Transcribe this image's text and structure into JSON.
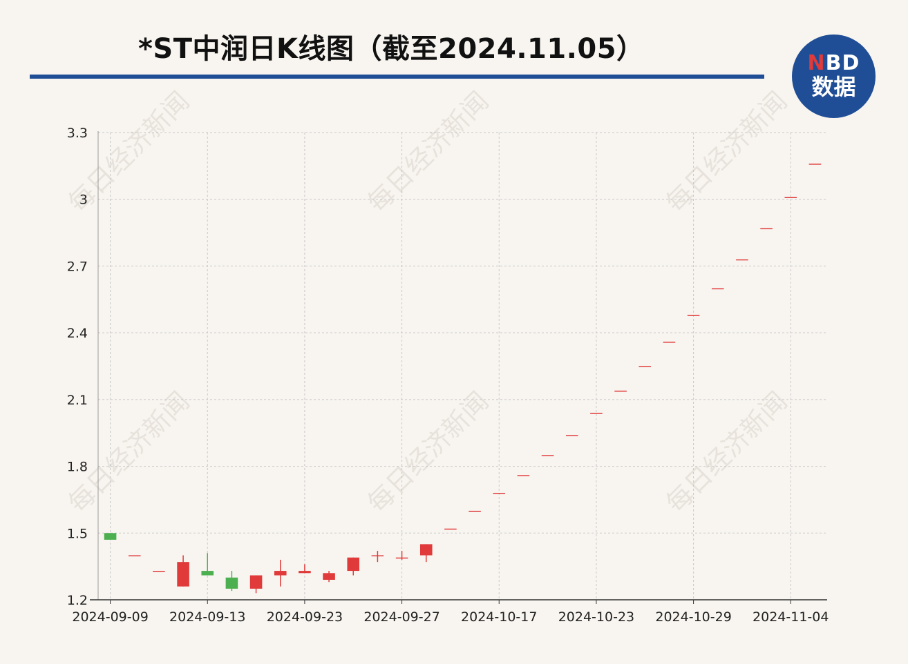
{
  "title": "*ST中润日K线图（截至2024.11.05）",
  "logo": {
    "top_n": "N",
    "top_rest": "BD",
    "bottom": "数据"
  },
  "watermark": "每日经济新闻",
  "colors": {
    "up": "#e03a3a",
    "down": "#4caf50",
    "accent": "#1f4e96",
    "grid": "#c8c8c8"
  },
  "chart_data": {
    "type": "candlestick",
    "title": "*ST中润日K线图（截至2024.11.05）",
    "xlabel": "",
    "ylabel": "",
    "ylim": [
      1.2,
      3.3
    ],
    "yticks": [
      "3.3",
      "3",
      "2.7",
      "2.4",
      "2.1",
      "1.8",
      "1.5",
      "1.2"
    ],
    "ytick_values": [
      3.3,
      3.0,
      2.7,
      2.4,
      2.1,
      1.8,
      1.5,
      1.2
    ],
    "xtick_labels": [
      {
        "label": "2024-09-09",
        "index": 0
      },
      {
        "label": "2024-09-13",
        "index": 4
      },
      {
        "label": "2024-09-23",
        "index": 8
      },
      {
        "label": "2024-09-27",
        "index": 12
      },
      {
        "label": "2024-10-17",
        "index": 16
      },
      {
        "label": "2024-10-23",
        "index": 20
      },
      {
        "label": "2024-10-29",
        "index": 24
      },
      {
        "label": "2024-11-04",
        "index": 28
      }
    ],
    "grid": true,
    "candles": [
      {
        "open": 1.5,
        "close": 1.47,
        "high": 1.5,
        "low": 1.47
      },
      {
        "open": 1.4,
        "close": 1.4,
        "high": 1.4,
        "low": 1.4
      },
      {
        "open": 1.33,
        "close": 1.33,
        "high": 1.33,
        "low": 1.33
      },
      {
        "open": 1.26,
        "close": 1.37,
        "high": 1.4,
        "low": 1.26
      },
      {
        "open": 1.33,
        "close": 1.31,
        "high": 1.41,
        "low": 1.31
      },
      {
        "open": 1.3,
        "close": 1.25,
        "high": 1.33,
        "low": 1.24
      },
      {
        "open": 1.25,
        "close": 1.31,
        "high": 1.31,
        "low": 1.23
      },
      {
        "open": 1.31,
        "close": 1.33,
        "high": 1.38,
        "low": 1.26
      },
      {
        "open": 1.32,
        "close": 1.33,
        "high": 1.36,
        "low": 1.32
      },
      {
        "open": 1.29,
        "close": 1.32,
        "high": 1.33,
        "low": 1.28
      },
      {
        "open": 1.33,
        "close": 1.39,
        "high": 1.39,
        "low": 1.31
      },
      {
        "open": 1.4,
        "close": 1.4,
        "high": 1.42,
        "low": 1.37
      },
      {
        "open": 1.39,
        "close": 1.39,
        "high": 1.42,
        "low": 1.38
      },
      {
        "open": 1.4,
        "close": 1.45,
        "high": 1.45,
        "low": 1.37
      },
      {
        "open": 1.52,
        "close": 1.52,
        "high": 1.52,
        "low": 1.52
      },
      {
        "open": 1.6,
        "close": 1.6,
        "high": 1.6,
        "low": 1.6
      },
      {
        "open": 1.68,
        "close": 1.68,
        "high": 1.68,
        "low": 1.68
      },
      {
        "open": 1.76,
        "close": 1.76,
        "high": 1.76,
        "low": 1.76
      },
      {
        "open": 1.85,
        "close": 1.85,
        "high": 1.85,
        "low": 1.85
      },
      {
        "open": 1.94,
        "close": 1.94,
        "high": 1.94,
        "low": 1.94
      },
      {
        "open": 2.04,
        "close": 2.04,
        "high": 2.04,
        "low": 2.04
      },
      {
        "open": 2.14,
        "close": 2.14,
        "high": 2.14,
        "low": 2.14
      },
      {
        "open": 2.25,
        "close": 2.25,
        "high": 2.25,
        "low": 2.25
      },
      {
        "open": 2.36,
        "close": 2.36,
        "high": 2.36,
        "low": 2.36
      },
      {
        "open": 2.48,
        "close": 2.48,
        "high": 2.48,
        "low": 2.48
      },
      {
        "open": 2.6,
        "close": 2.6,
        "high": 2.6,
        "low": 2.6
      },
      {
        "open": 2.73,
        "close": 2.73,
        "high": 2.73,
        "low": 2.73
      },
      {
        "open": 2.87,
        "close": 2.87,
        "high": 2.87,
        "low": 2.87
      },
      {
        "open": 3.01,
        "close": 3.01,
        "high": 3.01,
        "low": 3.01
      },
      {
        "open": 3.16,
        "close": 3.16,
        "high": 3.16,
        "low": 3.16
      }
    ]
  }
}
